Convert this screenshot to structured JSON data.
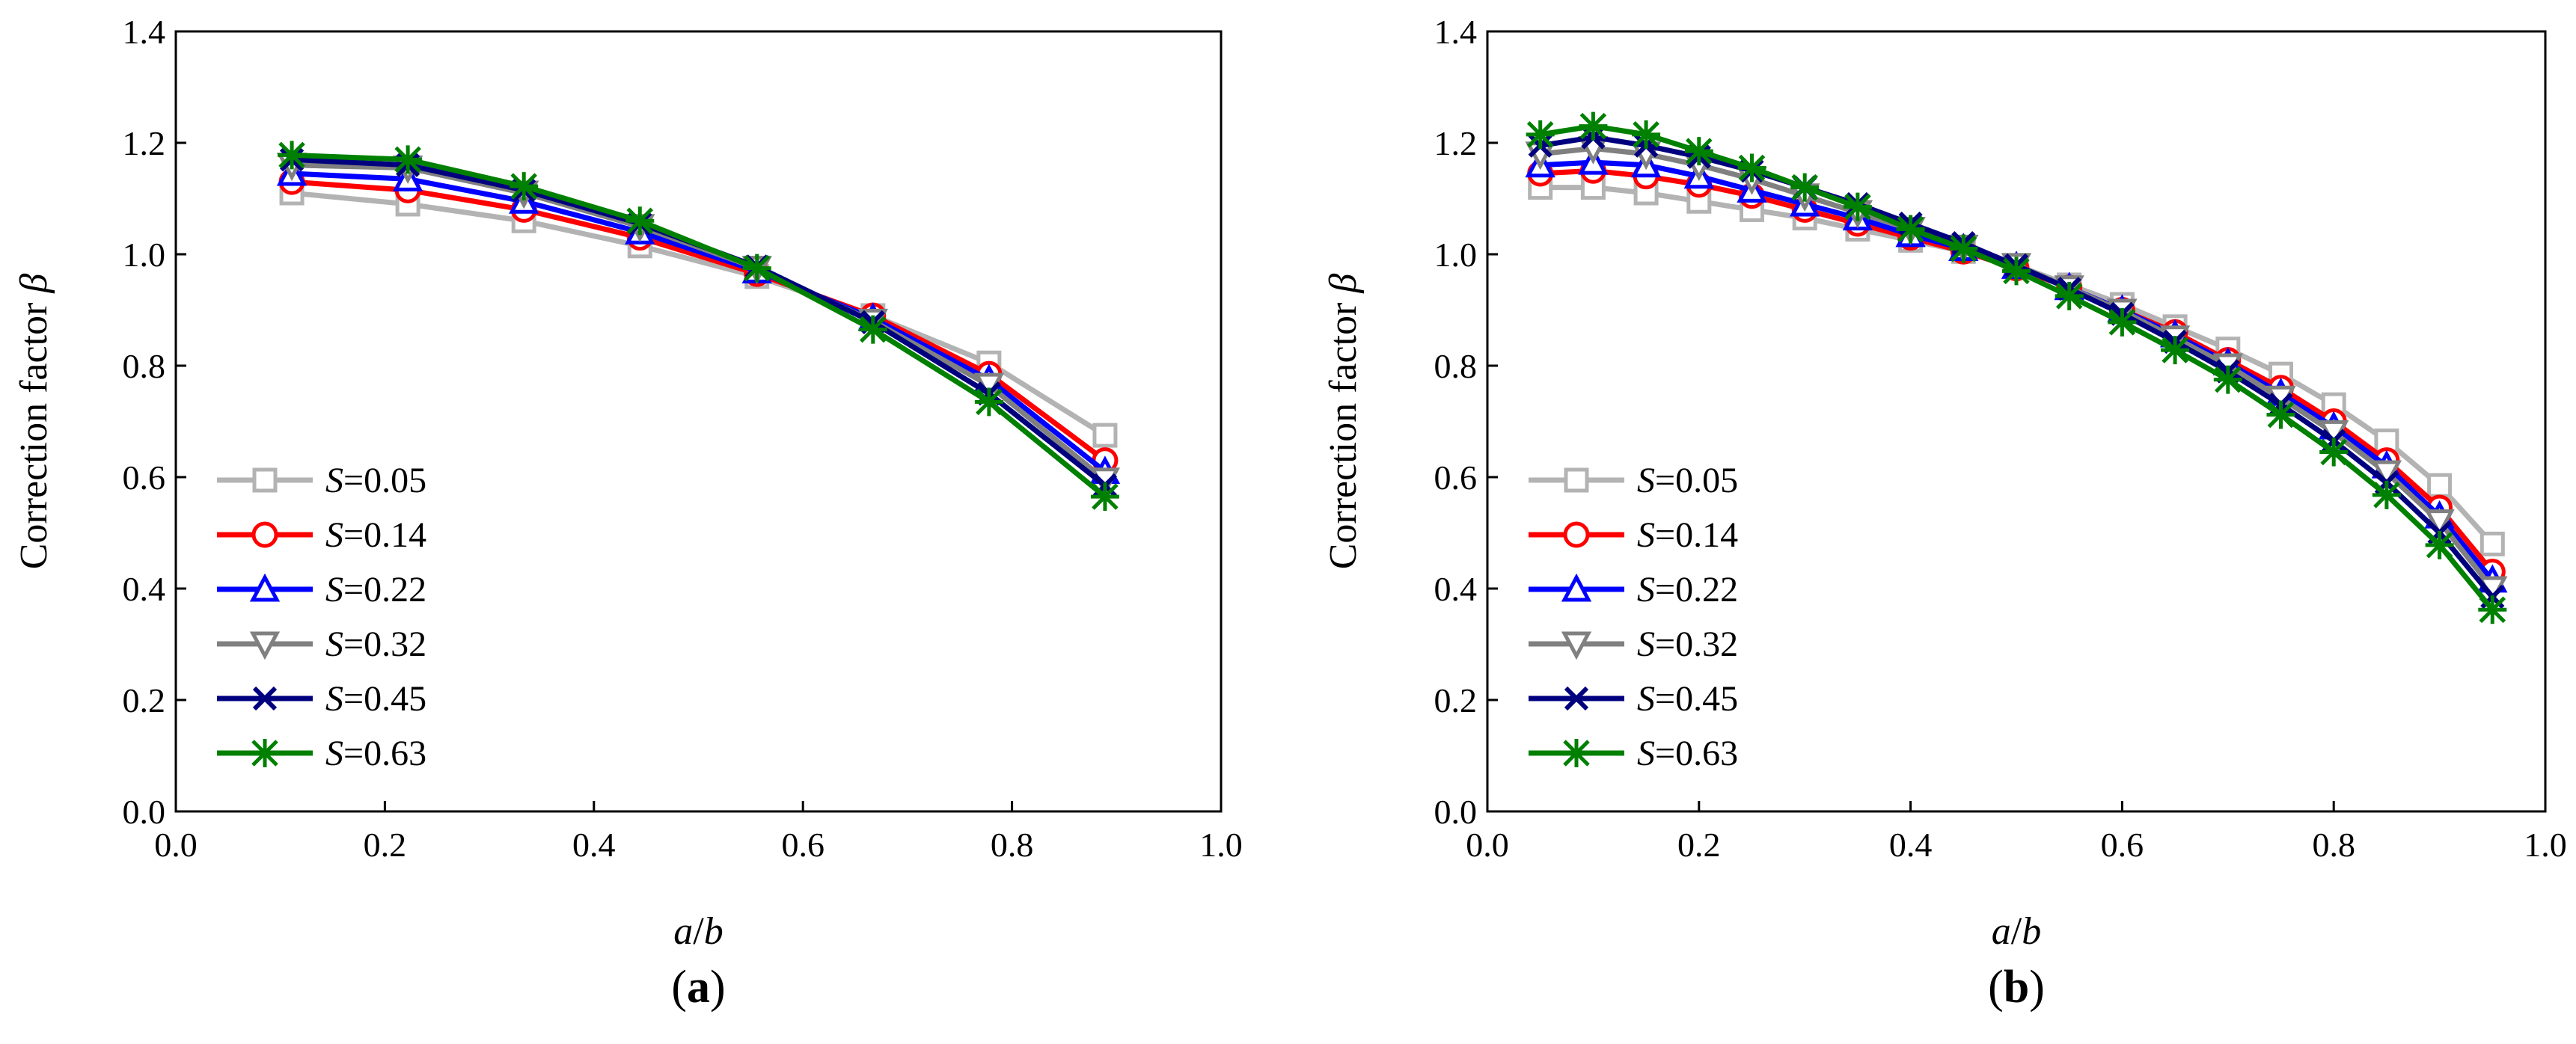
{
  "chart_data": [
    {
      "panel_id": "a",
      "panel_label": "(a)",
      "type": "line",
      "xlabel": "a/b",
      "ylabel": "Correction factor β",
      "xlim": [
        0.0,
        1.0
      ],
      "ylim": [
        0.0,
        1.4
      ],
      "xticks": [
        0.0,
        0.2,
        0.4,
        0.6,
        0.8,
        1.0
      ],
      "yticks": [
        0.0,
        0.2,
        0.4,
        0.6,
        0.8,
        1.0,
        1.2,
        1.4
      ],
      "legend_position": "bottom-left",
      "x": [
        0.111,
        0.222,
        0.333,
        0.444,
        0.556,
        0.667,
        0.778,
        0.889
      ],
      "series": [
        {
          "name": "S=0.05",
          "var": "S",
          "val": "=0.05",
          "color": "#b3b3b3",
          "marker": "square",
          "values": [
            1.11,
            1.09,
            1.06,
            1.015,
            0.96,
            0.89,
            0.805,
            0.675
          ]
        },
        {
          "name": "S=0.14",
          "var": "S",
          "val": "=0.14",
          "color": "#ff0000",
          "marker": "circle",
          "values": [
            1.13,
            1.115,
            1.08,
            1.03,
            0.965,
            0.89,
            0.785,
            0.63
          ]
        },
        {
          "name": "S=0.22",
          "var": "S",
          "val": "=0.22",
          "color": "#0000ff",
          "marker": "triangle-up",
          "values": [
            1.145,
            1.135,
            1.095,
            1.04,
            0.97,
            0.885,
            0.775,
            0.61
          ]
        },
        {
          "name": "S=0.32",
          "var": "S",
          "val": "=0.32",
          "color": "#808080",
          "marker": "triangle-down",
          "values": [
            1.16,
            1.155,
            1.11,
            1.05,
            0.975,
            0.88,
            0.765,
            0.595
          ]
        },
        {
          "name": "S=0.45",
          "var": "S",
          "val": "=0.45",
          "color": "#00007f",
          "marker": "x",
          "values": [
            1.17,
            1.16,
            1.115,
            1.055,
            0.978,
            0.878,
            0.75,
            0.585
          ]
        },
        {
          "name": "S=0.63",
          "var": "S",
          "val": "=0.63",
          "color": "#008000",
          "marker": "star",
          "values": [
            1.178,
            1.17,
            1.122,
            1.06,
            0.975,
            0.865,
            0.735,
            0.565
          ]
        }
      ]
    },
    {
      "panel_id": "b",
      "panel_label": "(b)",
      "type": "line",
      "xlabel": "a/b",
      "ylabel": "Correction factor β",
      "xlim": [
        0.0,
        1.0
      ],
      "ylim": [
        0.0,
        1.4
      ],
      "xticks": [
        0.0,
        0.2,
        0.4,
        0.6,
        0.8,
        1.0
      ],
      "yticks": [
        0.0,
        0.2,
        0.4,
        0.6,
        0.8,
        1.0,
        1.2,
        1.4
      ],
      "legend_position": "bottom-left",
      "x": [
        0.05,
        0.1,
        0.15,
        0.2,
        0.25,
        0.3,
        0.35,
        0.4,
        0.45,
        0.5,
        0.55,
        0.6,
        0.65,
        0.7,
        0.75,
        0.8,
        0.85,
        0.9,
        0.95
      ],
      "series": [
        {
          "name": "S=0.05",
          "var": "S",
          "val": "=0.05",
          "color": "#b3b3b3",
          "marker": "square",
          "values": [
            1.12,
            1.12,
            1.11,
            1.095,
            1.08,
            1.065,
            1.045,
            1.025,
            1.005,
            0.98,
            0.945,
            0.91,
            0.87,
            0.83,
            0.785,
            0.73,
            0.665,
            0.585,
            0.48
          ]
        },
        {
          "name": "S=0.14",
          "var": "S",
          "val": "=0.14",
          "color": "#ff0000",
          "marker": "circle",
          "values": [
            1.145,
            1.15,
            1.14,
            1.125,
            1.105,
            1.08,
            1.055,
            1.03,
            1.005,
            0.975,
            0.94,
            0.9,
            0.86,
            0.81,
            0.76,
            0.7,
            0.63,
            0.545,
            0.43
          ]
        },
        {
          "name": "S=0.22",
          "var": "S",
          "val": "=0.22",
          "color": "#0000ff",
          "marker": "triangle-up",
          "values": [
            1.16,
            1.165,
            1.16,
            1.14,
            1.115,
            1.09,
            1.065,
            1.035,
            1.01,
            0.978,
            0.94,
            0.9,
            0.855,
            0.805,
            0.75,
            0.69,
            0.62,
            0.53,
            0.415
          ]
        },
        {
          "name": "S=0.32",
          "var": "S",
          "val": "=0.32",
          "color": "#808080",
          "marker": "triangle-down",
          "values": [
            1.18,
            1.19,
            1.18,
            1.16,
            1.135,
            1.105,
            1.075,
            1.045,
            1.013,
            0.98,
            0.94,
            0.898,
            0.85,
            0.8,
            0.742,
            0.68,
            0.608,
            0.52,
            0.4
          ]
        },
        {
          "name": "S=0.45",
          "var": "S",
          "val": "=0.45",
          "color": "#00007f",
          "marker": "x",
          "values": [
            1.195,
            1.21,
            1.195,
            1.175,
            1.15,
            1.12,
            1.09,
            1.055,
            1.02,
            0.98,
            0.938,
            0.893,
            0.843,
            0.79,
            0.73,
            0.665,
            0.59,
            0.5,
            0.385
          ]
        },
        {
          "name": "S=0.63",
          "var": "S",
          "val": "=0.63",
          "color": "#008000",
          "marker": "star",
          "values": [
            1.215,
            1.23,
            1.215,
            1.185,
            1.155,
            1.12,
            1.085,
            1.045,
            1.01,
            0.97,
            0.925,
            0.878,
            0.828,
            0.775,
            0.712,
            0.645,
            0.568,
            0.478,
            0.362
          ]
        }
      ]
    }
  ]
}
